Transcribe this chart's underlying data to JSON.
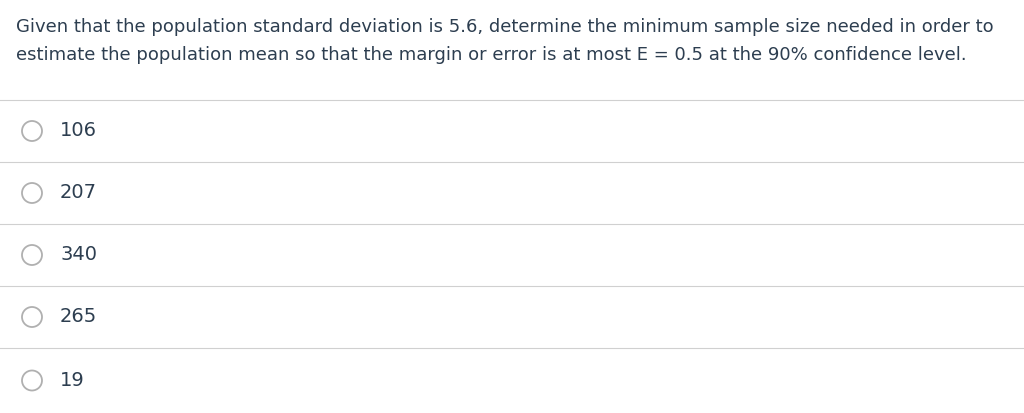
{
  "background_color": "#ffffff",
  "question_line1": "Given that the population standard deviation is 5.6, determine the minimum sample size needed in order to",
  "question_line2": "estimate the population mean so that the margin or error is at most E = 0.5 at the 90% confidence level.",
  "choices": [
    "106",
    "207",
    "340",
    "265",
    "19"
  ],
  "text_color": "#2d3e50",
  "line_color": "#d0d0d0",
  "font_size_question": 13.0,
  "font_size_choices": 14.0,
  "figsize": [
    10.24,
    4.13
  ],
  "dpi": 100
}
